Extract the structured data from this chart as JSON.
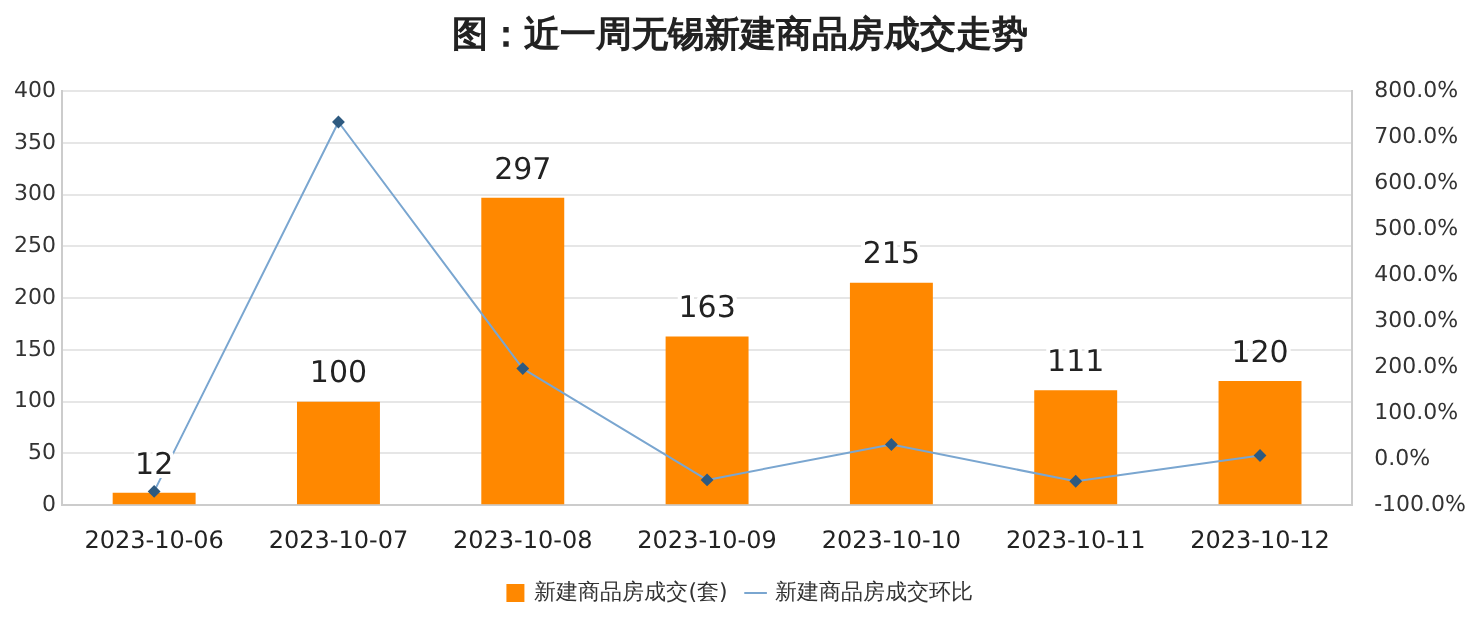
{
  "chart_data": {
    "type": "bar",
    "title": "图：近一周无锡新建商品房成交走势",
    "categories": [
      "2023-10-06",
      "2023-10-07",
      "2023-10-08",
      "2023-10-09",
      "2023-10-10",
      "2023-10-11",
      "2023-10-12"
    ],
    "series": [
      {
        "name": "新建商品房成交(套)",
        "color": "#ff8800",
        "values": [
          12,
          100,
          297,
          163,
          215,
          111,
          120
        ],
        "value_labels": [
          "12",
          "100",
          "297",
          "163",
          "215",
          "111",
          "120"
        ]
      },
      {
        "name": "新建商品房成交环比",
        "type": "line",
        "axis": "y2",
        "color": "#7aa6d0",
        "marker": "diamond",
        "values": [
          -70,
          733,
          197,
          -45,
          32,
          -48,
          8
        ]
      }
    ],
    "ylim": [
      0,
      400
    ],
    "yticks": [
      0,
      50,
      100,
      150,
      200,
      250,
      300,
      350,
      400
    ],
    "y2lim": [
      -100,
      800
    ],
    "y2ticks": [
      {
        "value": -100,
        "label": "-100.0%"
      },
      {
        "value": 0,
        "label": "0.0%"
      },
      {
        "value": 100,
        "label": "100.0%"
      },
      {
        "value": 200,
        "label": "200.0%"
      },
      {
        "value": 300,
        "label": "300.0%"
      },
      {
        "value": 400,
        "label": "400.0%"
      },
      {
        "value": 500,
        "label": "500.0%"
      },
      {
        "value": 600,
        "label": "600.0%"
      },
      {
        "value": 700,
        "label": "700.0%"
      },
      {
        "value": 800,
        "label": "800.0%"
      }
    ],
    "grid": "y",
    "legend": "bottom"
  }
}
